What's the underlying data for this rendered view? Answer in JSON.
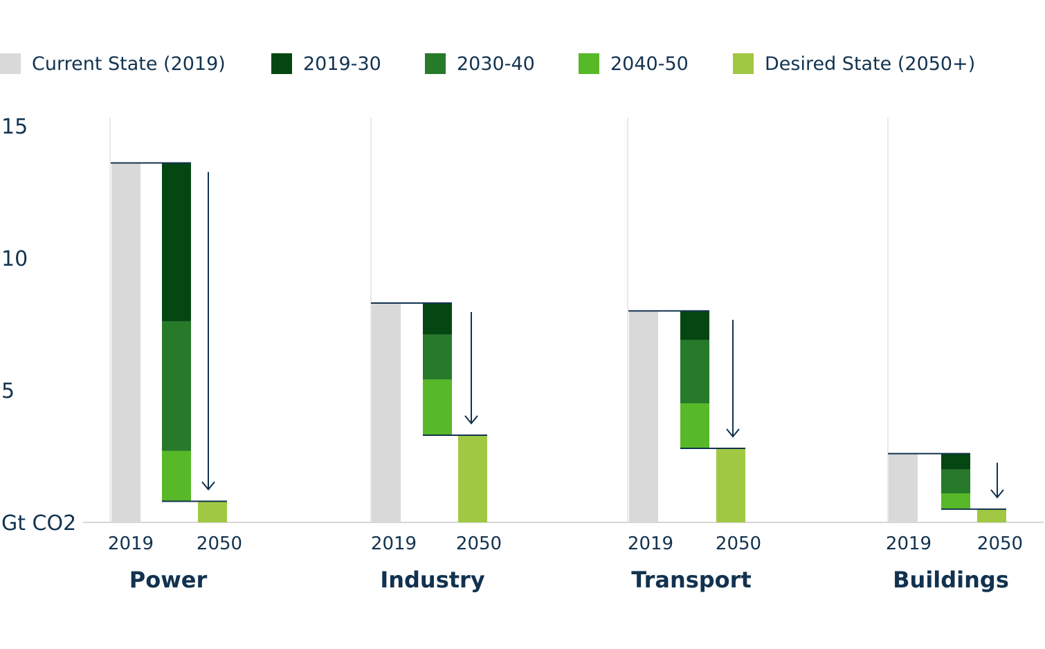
{
  "chart_data": {
    "type": "bar",
    "subtype": "waterfall",
    "ylabel": "Gt CO2",
    "ylim": [
      0,
      15
    ],
    "yticks": [
      "15",
      "10",
      "5"
    ],
    "grid": false,
    "legend_position": "top",
    "legend": [
      {
        "label": "Current State (2019)",
        "color": "#d9d9d9"
      },
      {
        "label": "2019-30",
        "color": "#044712"
      },
      {
        "label": "2030-40",
        "color": "#267a2a"
      },
      {
        "label": "2040-50",
        "color": "#58b928"
      },
      {
        "label": "Desired State (2050+)",
        "color": "#a1c843"
      }
    ],
    "sectors": [
      {
        "name": "Power",
        "year_labels": [
          "2019",
          "2050"
        ],
        "current_2019": 13.6,
        "reduction_2019_30": 6.0,
        "reduction_2030_40": 4.9,
        "reduction_2040_50": 1.9,
        "desired_2050": 0.8
      },
      {
        "name": "Industry",
        "year_labels": [
          "2019",
          "2050"
        ],
        "current_2019": 8.3,
        "reduction_2019_30": 1.2,
        "reduction_2030_40": 1.7,
        "reduction_2040_50": 2.1,
        "desired_2050": 3.3
      },
      {
        "name": "Transport",
        "year_labels": [
          "2019",
          "2050"
        ],
        "current_2019": 8.0,
        "reduction_2019_30": 1.1,
        "reduction_2030_40": 2.4,
        "reduction_2040_50": 1.7,
        "desired_2050": 2.8
      },
      {
        "name": "Buildings",
        "year_labels": [
          "2019",
          "2050"
        ],
        "current_2019": 2.6,
        "reduction_2019_30": 0.6,
        "reduction_2030_40": 0.9,
        "reduction_2040_50": 0.6,
        "desired_2050": 0.5
      }
    ]
  }
}
